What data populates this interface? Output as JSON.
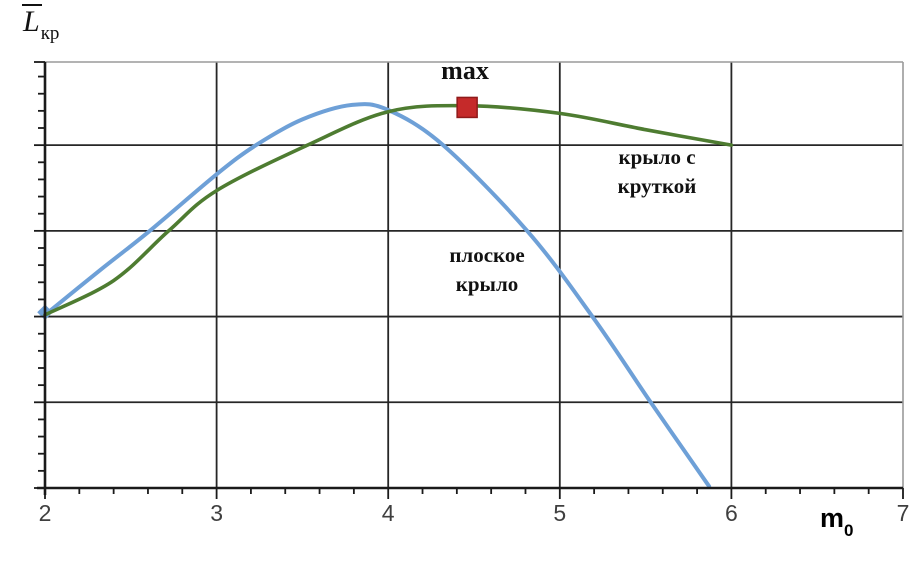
{
  "chart_data": {
    "type": "line",
    "title": "",
    "ylabel": {
      "main": "L",
      "sub": "кр",
      "overbar": true
    },
    "xlabel": {
      "main": "m",
      "sub": "0"
    },
    "x_range": [
      2,
      7
    ],
    "x_ticks": [
      "2",
      "3",
      "4",
      "5",
      "6",
      "7"
    ],
    "x_minor_per_major": 5,
    "y_axis_top_units": 4.97,
    "y_gridline_step": 1,
    "y_minor_per_major": 5,
    "grid": true,
    "legend_position": "inline-annotations",
    "series": [
      {
        "name": "плоское крыло",
        "label_text": "плоское\nкрыло",
        "color": "#6EA0D7",
        "points": [
          [
            2.0,
            2.02
          ],
          [
            2.32,
            2.54
          ],
          [
            2.61,
            3.0
          ],
          [
            3.0,
            3.66
          ],
          [
            3.23,
            4.0
          ],
          [
            3.5,
            4.3
          ],
          [
            3.79,
            4.47
          ],
          [
            4.0,
            4.41
          ],
          [
            4.32,
            4.0
          ],
          [
            4.81,
            3.0
          ],
          [
            5.19,
            2.0
          ],
          [
            5.53,
            1.0
          ],
          [
            5.87,
            0.02
          ]
        ]
      },
      {
        "name": "крыло с круткой",
        "label_text": "крыло с\nкруткой",
        "color": "#4E7C31",
        "points": [
          [
            2.0,
            2.02
          ],
          [
            2.4,
            2.42
          ],
          [
            2.72,
            3.0
          ],
          [
            3.0,
            3.47
          ],
          [
            3.53,
            4.0
          ],
          [
            4.0,
            4.39
          ],
          [
            4.46,
            4.46
          ],
          [
            5.0,
            4.37
          ],
          [
            5.5,
            4.18
          ],
          [
            6.0,
            4.0
          ]
        ]
      }
    ],
    "max_marker": {
      "label": "max",
      "x": 4.46,
      "y": 4.44,
      "color": "#C52A2A",
      "border": "#8F1A1A"
    },
    "origin_marker": {
      "x": 2.0,
      "y": 2.05,
      "shape": "diamond",
      "color": "#6EA0D7"
    },
    "colors": {
      "grid": "#262626",
      "axis": "#1a1a1a",
      "frame": "#9a9a9a",
      "tick_label": "#3f3f3f"
    }
  }
}
